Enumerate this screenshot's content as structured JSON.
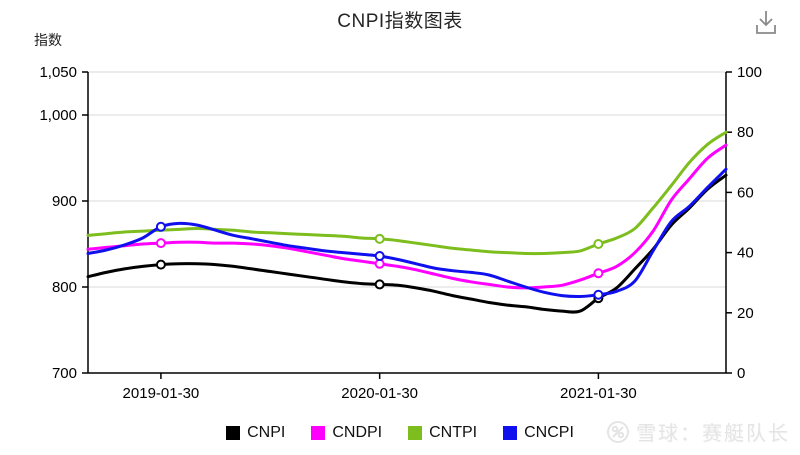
{
  "header": {
    "title": "CNPI指数图表",
    "unit_label": "指数"
  },
  "chart_data": {
    "type": "line",
    "title": "CNPI指数图表",
    "grid": true,
    "legend_position": "bottom",
    "left_axis": {
      "range": [
        700,
        1050
      ],
      "ticks": [
        700,
        800,
        900,
        1000,
        1050
      ],
      "labels": [
        "700",
        "800",
        "900",
        "1,000",
        "1,050"
      ]
    },
    "right_axis": {
      "range": [
        0,
        100
      ],
      "ticks": [
        0,
        20,
        40,
        60,
        80,
        100
      ],
      "labels": [
        "0",
        "20",
        "40",
        "60",
        "80",
        "100"
      ]
    },
    "grid_values": [
      800,
      900,
      1000,
      1050
    ],
    "x_tick_labels": [
      "2019-01-30",
      "2020-01-30",
      "2021-01-30"
    ],
    "x_tick_indices": [
      4,
      16,
      28
    ],
    "series": [
      {
        "name": "CNPI",
        "color": "#000000",
        "marker_indices": [
          4,
          16,
          28
        ],
        "values": [
          812,
          817,
          821,
          824,
          826,
          827,
          827,
          826,
          824,
          821,
          818,
          815,
          812,
          809,
          806,
          804,
          803,
          802,
          799,
          795,
          790,
          786,
          782,
          779,
          777,
          774,
          772,
          772,
          787,
          799,
          821,
          844,
          872,
          892,
          914,
          930
        ]
      },
      {
        "name": "CNDPI",
        "color": "#FF00FF",
        "marker_indices": [
          4,
          16,
          28
        ],
        "values": [
          844,
          846,
          848,
          850,
          851,
          852,
          852,
          851,
          851,
          850,
          848,
          845,
          841,
          837,
          833,
          830,
          827,
          824,
          820,
          815,
          810,
          806,
          803,
          800,
          799,
          800,
          802,
          808,
          816,
          824,
          840,
          865,
          901,
          926,
          950,
          965
        ]
      },
      {
        "name": "CNTPI",
        "color": "#7DBE1E",
        "marker_indices": [
          16,
          28
        ],
        "values": [
          860,
          862,
          864,
          865,
          866,
          867,
          868,
          867,
          866,
          864,
          863,
          862,
          861,
          860,
          859,
          857,
          856,
          854,
          851,
          848,
          845,
          843,
          841,
          840,
          839,
          839,
          840,
          842,
          850,
          857,
          868,
          892,
          918,
          945,
          966,
          980
        ]
      },
      {
        "name": "CNCPI",
        "color": "#1010EE",
        "marker_indices": [
          4,
          16,
          28
        ],
        "values": [
          839,
          843,
          849,
          857,
          870,
          874,
          872,
          866,
          860,
          856,
          852,
          848,
          845,
          842,
          840,
          838,
          836,
          832,
          827,
          822,
          819,
          817,
          814,
          807,
          800,
          794,
          790,
          789,
          791,
          795,
          807,
          842,
          876,
          894,
          916,
          937
        ]
      }
    ]
  },
  "watermark": {
    "text": "雪球：赛艇队长"
  }
}
